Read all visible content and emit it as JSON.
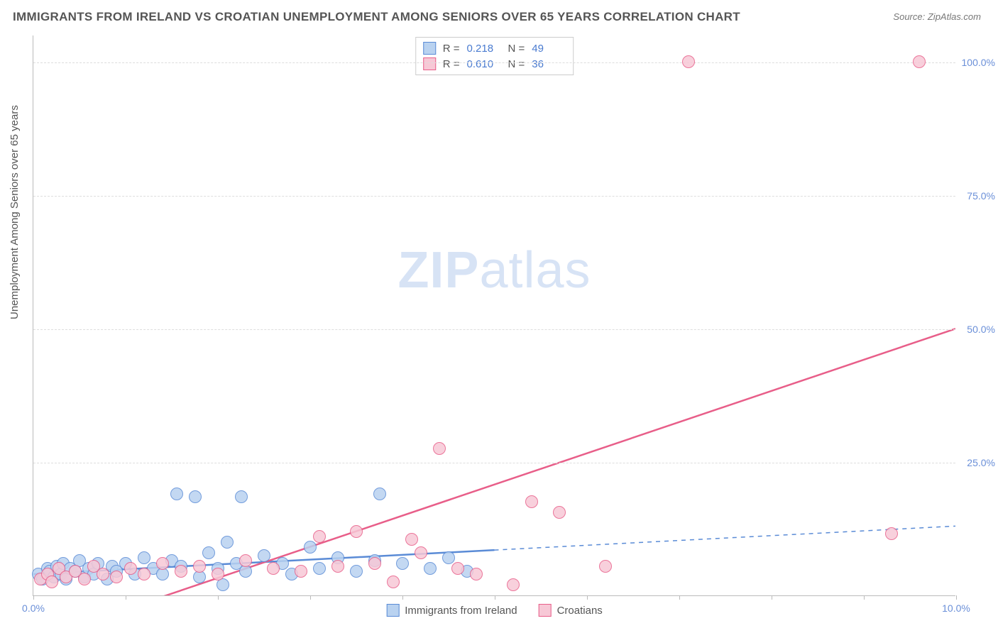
{
  "title": "IMMIGRANTS FROM IRELAND VS CROATIAN UNEMPLOYMENT AMONG SENIORS OVER 65 YEARS CORRELATION CHART",
  "source_label": "Source:",
  "source_value": "ZipAtlas.com",
  "ylabel": "Unemployment Among Seniors over 65 years",
  "watermark_bold": "ZIP",
  "watermark_light": "atlas",
  "chart": {
    "type": "scatter",
    "background_color": "#ffffff",
    "grid_color": "#dddddd",
    "axis_color": "#bbbbbb",
    "tick_label_color": "#6a8fd8",
    "tick_fontsize": 14,
    "title_color": "#555555",
    "title_fontsize": 17,
    "xlim": [
      0,
      10
    ],
    "ylim": [
      0,
      105
    ],
    "yticks": [
      25,
      50,
      75,
      100
    ],
    "ytick_labels": [
      "25.0%",
      "50.0%",
      "75.0%",
      "100.0%"
    ],
    "xticks": [
      0,
      1,
      2,
      3,
      4,
      5,
      6,
      7,
      8,
      9,
      10
    ],
    "xtick_labels": [
      "0.0%",
      "",
      "",
      "",
      "",
      "",
      "",
      "",
      "",
      "",
      "10.0%"
    ],
    "marker_radius": 9,
    "marker_border_width": 1.5,
    "trend_line_width": 2.5,
    "series": [
      {
        "key": "ireland",
        "label": "Immigrants from Ireland",
        "fill": "#b9d2f0",
        "stroke": "#5a8bd6",
        "r_value": "0.218",
        "n_value": "49",
        "trend": {
          "x1": 0,
          "y1": 4.0,
          "x2": 5.0,
          "y2": 8.5,
          "dash_x2": 10.0,
          "dash_y2": 13.0
        },
        "points": [
          [
            0.05,
            4.0
          ],
          [
            0.1,
            3.0
          ],
          [
            0.15,
            5.0
          ],
          [
            0.18,
            4.5
          ],
          [
            0.22,
            3.5
          ],
          [
            0.25,
            5.5
          ],
          [
            0.3,
            4.0
          ],
          [
            0.32,
            6.0
          ],
          [
            0.35,
            3.0
          ],
          [
            0.4,
            5.0
          ],
          [
            0.45,
            4.5
          ],
          [
            0.5,
            6.5
          ],
          [
            0.55,
            3.5
          ],
          [
            0.6,
            5.0
          ],
          [
            0.65,
            4.0
          ],
          [
            0.7,
            6.0
          ],
          [
            0.8,
            3.0
          ],
          [
            0.85,
            5.5
          ],
          [
            0.9,
            4.5
          ],
          [
            1.0,
            6.0
          ],
          [
            1.1,
            4.0
          ],
          [
            1.2,
            7.0
          ],
          [
            1.3,
            5.0
          ],
          [
            1.4,
            4.0
          ],
          [
            1.5,
            6.5
          ],
          [
            1.55,
            19.0
          ],
          [
            1.6,
            5.5
          ],
          [
            1.75,
            18.5
          ],
          [
            1.8,
            3.5
          ],
          [
            1.9,
            8.0
          ],
          [
            2.0,
            5.0
          ],
          [
            2.05,
            2.0
          ],
          [
            2.1,
            10.0
          ],
          [
            2.2,
            6.0
          ],
          [
            2.25,
            18.5
          ],
          [
            2.3,
            4.5
          ],
          [
            2.5,
            7.5
          ],
          [
            2.7,
            6.0
          ],
          [
            2.8,
            4.0
          ],
          [
            3.0,
            9.0
          ],
          [
            3.1,
            5.0
          ],
          [
            3.3,
            7.0
          ],
          [
            3.5,
            4.5
          ],
          [
            3.7,
            6.5
          ],
          [
            3.75,
            19.0
          ],
          [
            4.0,
            6.0
          ],
          [
            4.3,
            5.0
          ],
          [
            4.5,
            7.0
          ],
          [
            4.7,
            4.5
          ]
        ]
      },
      {
        "key": "croatians",
        "label": "Croatians",
        "fill": "#f7c8d6",
        "stroke": "#e85e89",
        "r_value": "0.610",
        "n_value": "36",
        "trend": {
          "x1": 1.1,
          "y1": -2.0,
          "x2": 10.0,
          "y2": 50.0
        },
        "points": [
          [
            0.08,
            3.0
          ],
          [
            0.15,
            4.0
          ],
          [
            0.2,
            2.5
          ],
          [
            0.28,
            5.0
          ],
          [
            0.35,
            3.5
          ],
          [
            0.45,
            4.5
          ],
          [
            0.55,
            3.0
          ],
          [
            0.65,
            5.5
          ],
          [
            0.75,
            4.0
          ],
          [
            0.9,
            3.5
          ],
          [
            1.05,
            5.0
          ],
          [
            1.2,
            4.0
          ],
          [
            1.4,
            6.0
          ],
          [
            1.6,
            4.5
          ],
          [
            1.8,
            5.5
          ],
          [
            2.0,
            4.0
          ],
          [
            2.3,
            6.5
          ],
          [
            2.6,
            5.0
          ],
          [
            2.9,
            4.5
          ],
          [
            3.1,
            11.0
          ],
          [
            3.3,
            5.5
          ],
          [
            3.5,
            12.0
          ],
          [
            3.7,
            6.0
          ],
          [
            3.9,
            2.5
          ],
          [
            4.1,
            10.5
          ],
          [
            4.2,
            8.0
          ],
          [
            4.4,
            27.5
          ],
          [
            4.6,
            5.0
          ],
          [
            4.8,
            4.0
          ],
          [
            5.2,
            2.0
          ],
          [
            5.4,
            17.5
          ],
          [
            5.7,
            15.5
          ],
          [
            6.2,
            5.5
          ],
          [
            7.1,
            100.0
          ],
          [
            9.3,
            11.5
          ],
          [
            9.6,
            100.0
          ]
        ]
      }
    ]
  },
  "stats_box": {
    "r_label": "R =",
    "n_label": "N ="
  }
}
